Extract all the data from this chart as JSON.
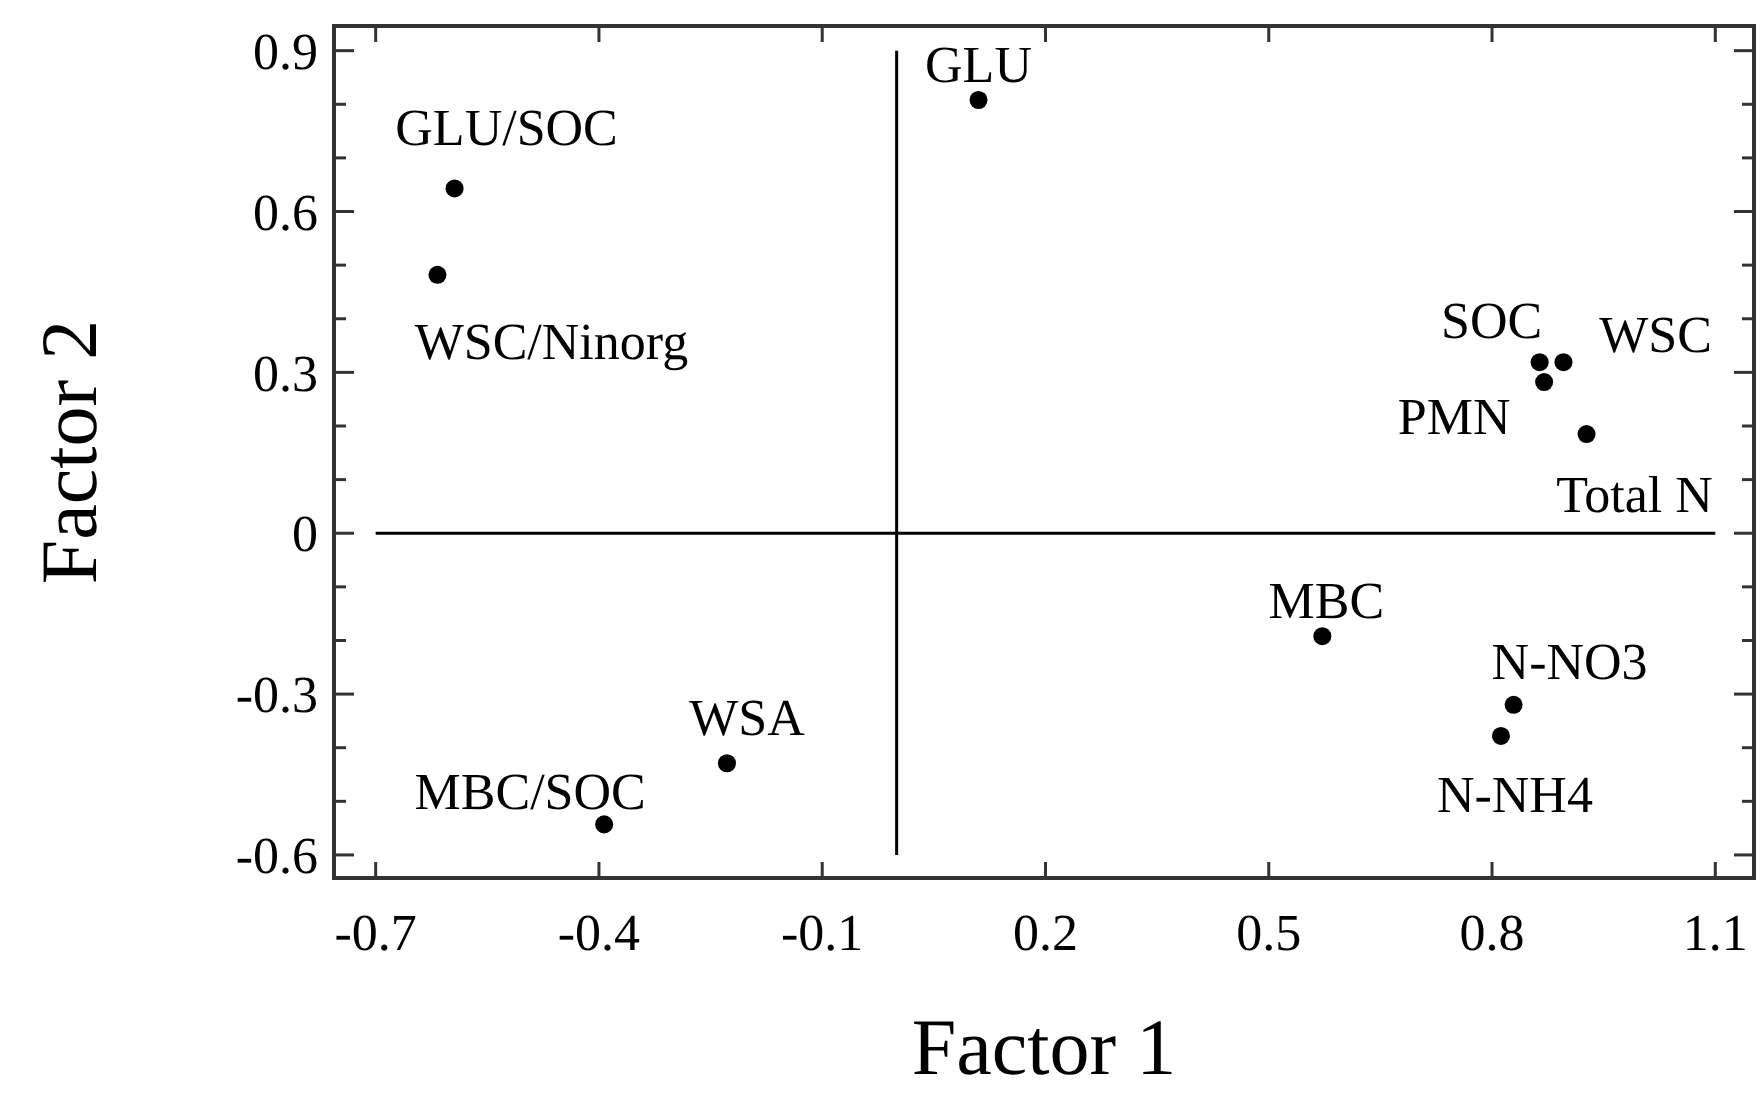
{
  "chart_data": {
    "type": "scatter",
    "xlabel": "Factor 1",
    "ylabel": "Factor 2",
    "marker": "circle",
    "grid": false,
    "xlim": [
      -0.756,
      1.152
    ],
    "ylim": [
      -0.643,
      0.946
    ],
    "xticks": [
      -0.7,
      -0.4,
      -0.1,
      0.2,
      0.5,
      0.8,
      1.1
    ],
    "yticks": [
      {
        "value": -0.6,
        "label": "-0.6"
      },
      {
        "value": -0.5,
        "label": null
      },
      {
        "value": -0.4,
        "label": null
      },
      {
        "value": -0.3,
        "label": "-0.3"
      },
      {
        "value": -0.2,
        "label": null
      },
      {
        "value": -0.1,
        "label": null
      },
      0,
      {
        "value": 0.1,
        "label": null
      },
      {
        "value": 0.2,
        "label": null
      },
      {
        "value": 0.3,
        "label": "0.3"
      },
      {
        "value": 0.4,
        "label": null
      },
      {
        "value": 0.5,
        "label": null
      },
      {
        "value": 0.6,
        "label": "0.6"
      },
      {
        "value": 0.7,
        "label": null
      },
      {
        "value": 0.8,
        "label": null
      },
      {
        "value": 0.9,
        "label": "0.9"
      }
    ],
    "series": [
      {
        "type": "line",
        "marker": "none",
        "color": "#000000",
        "x": [
          0,
          0
        ],
        "values": [
          -0.6,
          0.9
        ]
      },
      {
        "type": "line",
        "marker": "none",
        "color": "#000000",
        "x": [
          -0.7,
          1.1
        ],
        "values": [
          0,
          0
        ]
      },
      {
        "color": "#000000",
        "x": [
          -0.594,
          -0.617,
          0.11,
          -0.228,
          -0.393,
          0.864,
          0.896,
          0.87,
          0.927,
          0.572,
          0.829,
          0.812
        ],
        "values": [
          0.643,
          0.482,
          0.808,
          -0.429,
          -0.543,
          0.319,
          0.319,
          0.282,
          0.185,
          -0.192,
          -0.32,
          -0.378
        ]
      }
    ],
    "annotations": [
      {
        "text": "GLU/SOC",
        "x": -0.594,
        "y": 0.643
      },
      {
        "text": "WSC/Ninorg",
        "x": -0.617,
        "y": 0.482
      },
      {
        "text": "GLU",
        "x": 0.11,
        "y": 0.808
      },
      {
        "text": "WSA",
        "x": -0.228,
        "y": -0.429
      },
      {
        "text": "MBC/SOC",
        "x": -0.393,
        "y": -0.543
      },
      {
        "text": "SOC",
        "x": 0.864,
        "y": 0.319
      },
      {
        "text": "WSC",
        "x": 0.896,
        "y": 0.319
      },
      {
        "text": "PMN",
        "x": 0.87,
        "y": 0.282
      },
      {
        "text": "Total N",
        "x": 0.927,
        "y": 0.185
      },
      {
        "text": "MBC",
        "x": 0.572,
        "y": -0.192
      },
      {
        "text": "N-NO3",
        "x": 0.829,
        "y": -0.32
      },
      {
        "text": "N-NH4",
        "x": 0.812,
        "y": -0.378
      }
    ]
  }
}
